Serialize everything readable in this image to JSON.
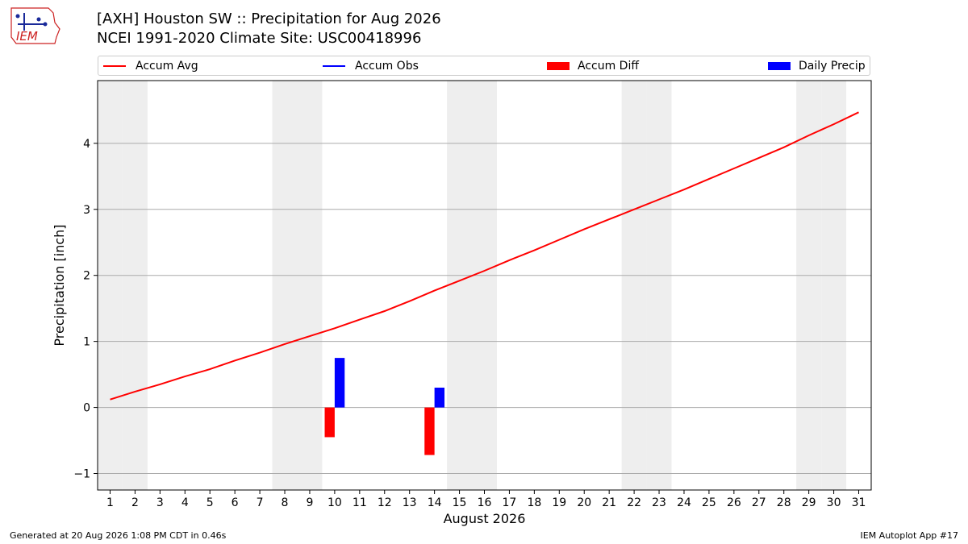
{
  "header": {
    "title_line1": "[AXH] Houston SW :: Precipitation for Aug 2026",
    "title_line2": "NCEI 1991-2020 Climate Site: USC00418996",
    "logo_text": "IEM"
  },
  "legend": {
    "accum_avg": "Accum Avg",
    "accum_obs": "Accum Obs",
    "accum_diff": "Accum Diff",
    "daily_precip": "Daily Precip"
  },
  "footer": {
    "generated": "Generated at 20 Aug 2026 1:08 PM CDT in 0.46s",
    "app": "IEM Autoplot App #17"
  },
  "colors": {
    "avg": "#ff0000",
    "obs": "#0000ff",
    "diff": "#ff0000",
    "daily": "#0000ff",
    "weekend": "#eeeeee",
    "grid": "#aaaaaa"
  },
  "chart_data": {
    "type": "bar",
    "xlabel": "August 2026",
    "ylabel": "Precipitation [inch]",
    "xlim": [
      0.5,
      31.5
    ],
    "ylim": [
      -1.25,
      4.95
    ],
    "y_ticks": [
      -1,
      0,
      1,
      2,
      3,
      4
    ],
    "x_ticks": [
      1,
      2,
      3,
      4,
      5,
      6,
      7,
      8,
      9,
      10,
      11,
      12,
      13,
      14,
      15,
      16,
      17,
      18,
      19,
      20,
      21,
      22,
      23,
      24,
      25,
      26,
      27,
      28,
      29,
      30,
      31
    ],
    "grid": "horizontal",
    "legend_position": "top",
    "weekend_days": [
      1,
      2,
      8,
      9,
      15,
      16,
      22,
      23,
      29,
      30
    ],
    "series": [
      {
        "name": "Accum Avg",
        "type": "line",
        "x": [
          1,
          2,
          3,
          4,
          5,
          6,
          7,
          8,
          9,
          10,
          11,
          12,
          13,
          14,
          15,
          16,
          17,
          18,
          19,
          20,
          21,
          22,
          23,
          24,
          25,
          26,
          27,
          28,
          29,
          30,
          31
        ],
        "values": [
          0.12,
          0.24,
          0.35,
          0.47,
          0.58,
          0.71,
          0.83,
          0.96,
          1.08,
          1.2,
          1.33,
          1.46,
          1.61,
          1.77,
          1.92,
          2.07,
          2.23,
          2.38,
          2.54,
          2.7,
          2.85,
          3.0,
          3.15,
          3.3,
          3.46,
          3.62,
          3.78,
          3.94,
          4.12,
          4.29,
          4.47
        ]
      },
      {
        "name": "Accum Obs",
        "type": "line",
        "x": [],
        "values": []
      },
      {
        "name": "Accum Diff",
        "type": "bar",
        "x": [
          10,
          14
        ],
        "values": [
          -0.45,
          -0.72
        ]
      },
      {
        "name": "Daily Precip",
        "type": "bar",
        "x": [
          10,
          14
        ],
        "values": [
          0.75,
          0.3
        ]
      }
    ]
  }
}
